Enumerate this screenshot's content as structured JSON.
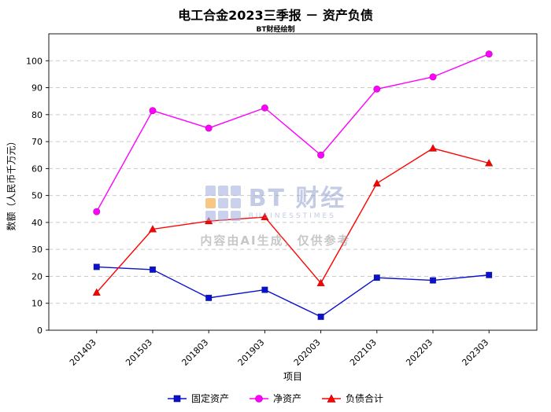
{
  "title": "电工合金2023三季报 － 资产负债",
  "subtitle": "BT财经绘制",
  "watermark": {
    "brand": "BT 财经",
    "brand_sub": "BUSINESSTIMES",
    "note": "内容由AI生成，仅供参考"
  },
  "chart_data": {
    "type": "line",
    "categories": [
      "201403",
      "201503",
      "201803",
      "201903",
      "202003",
      "202103",
      "202203",
      "202303"
    ],
    "series": [
      {
        "name": "固定资产",
        "marker": "square",
        "color": "#0a10cd",
        "values": [
          23.5,
          22.5,
          12,
          15,
          5,
          19.5,
          18.5,
          20.5
        ]
      },
      {
        "name": "净资产",
        "marker": "circle",
        "color": "#ff00ff",
        "values": [
          44,
          81.5,
          75,
          82.5,
          65,
          89.5,
          94,
          102.5
        ]
      },
      {
        "name": "负债合计",
        "marker": "triangle",
        "color": "#ff0000",
        "values": [
          14,
          37.5,
          40.5,
          42,
          17.5,
          54.5,
          67.5,
          62
        ]
      }
    ],
    "xlabel": "项目",
    "ylabel": "数额（人民币千万元）",
    "ylim": [
      0,
      110
    ],
    "yticks": [
      0,
      10,
      20,
      30,
      40,
      50,
      60,
      70,
      80,
      90,
      100
    ],
    "grid": "horizontal-dashed",
    "legend_position": "bottom"
  }
}
